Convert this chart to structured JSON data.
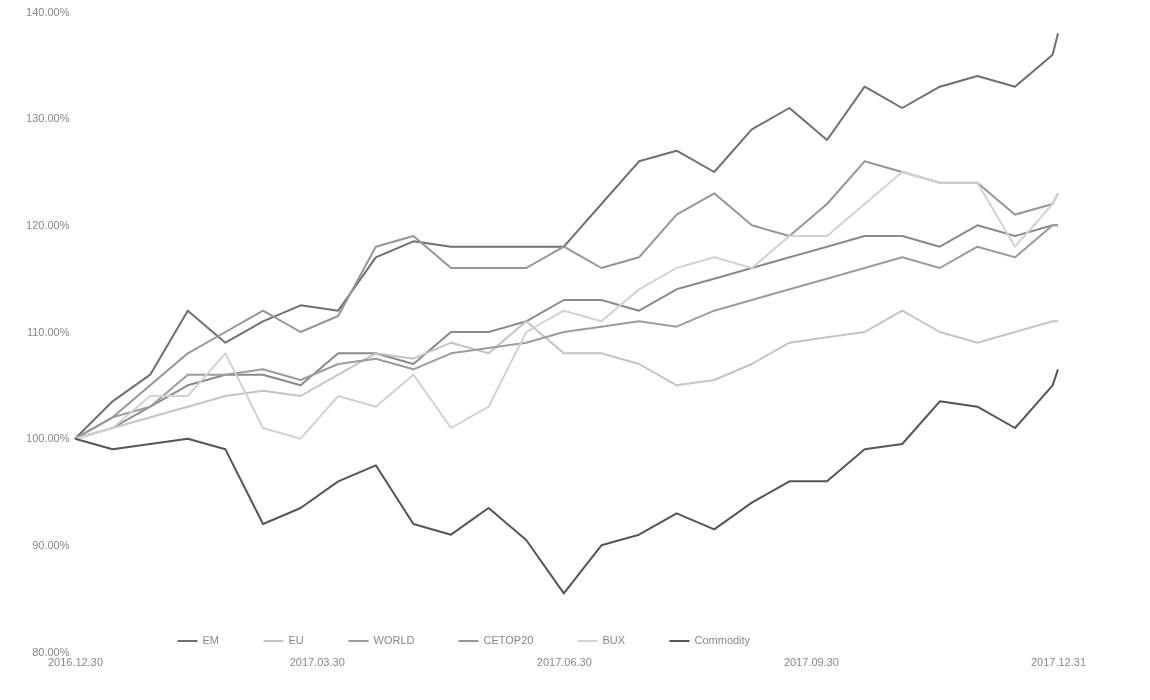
{
  "chart_data": {
    "type": "line",
    "x": [
      "2016-12-30",
      "2017-01-13",
      "2017-01-27",
      "2017-02-10",
      "2017-02-24",
      "2017-03-10",
      "2017-03-24",
      "2017-04-07",
      "2017-04-21",
      "2017-05-05",
      "2017-05-19",
      "2017-06-02",
      "2017-06-16",
      "2017-06-30",
      "2017-07-14",
      "2017-07-28",
      "2017-08-11",
      "2017-08-25",
      "2017-09-08",
      "2017-09-22",
      "2017-10-06",
      "2017-10-20",
      "2017-11-03",
      "2017-11-17",
      "2017-12-01",
      "2017-12-15",
      "2017-12-29",
      "2017-12-31"
    ],
    "series": [
      {
        "color": "#8a8a8a",
        "values": [
          100,
          101,
          103,
          105,
          106,
          106,
          105,
          108,
          108,
          107,
          110,
          110,
          111,
          113,
          113,
          112,
          114,
          115,
          116,
          117,
          118,
          119,
          119,
          118,
          120,
          119,
          120,
          120
        ]
      },
      {
        "name": "EM",
        "color": "#707070",
        "values": [
          100,
          103.5,
          106,
          112,
          109,
          111,
          112.5,
          112,
          117,
          118.5,
          118,
          118,
          118,
          118,
          122,
          126,
          127,
          125,
          129,
          131,
          128,
          133,
          131,
          133,
          134,
          133,
          136,
          138
        ]
      },
      {
        "name": "EU",
        "color": "#c4c4c4",
        "values": [
          100,
          101,
          102,
          103,
          104,
          104.5,
          104,
          106,
          108,
          107.5,
          109,
          108,
          111,
          108,
          108,
          107,
          105,
          105.5,
          107,
          109,
          109.5,
          110,
          112,
          110,
          109,
          110,
          111,
          111
        ]
      },
      {
        "name": "WORLD",
        "color": "#9c9c9c",
        "values": [
          100,
          102,
          103,
          106,
          106,
          106.5,
          105.5,
          107,
          107.5,
          106.5,
          108,
          108.5,
          109,
          110,
          110.5,
          111,
          110.5,
          112,
          113,
          114,
          115,
          116,
          117,
          116,
          118,
          117,
          120,
          120
        ]
      },
      {
        "name": "CETOP20",
        "color": "#969696",
        "values": [
          100,
          102,
          105,
          108,
          110,
          112,
          110,
          111.5,
          118,
          119,
          116,
          116,
          116,
          118,
          116,
          117,
          121,
          123,
          120,
          119,
          122,
          126,
          125,
          124,
          124,
          121,
          122,
          123
        ]
      },
      {
        "name": "BUX",
        "color": "#d2d2d2",
        "values": [
          100,
          101,
          104,
          104,
          108,
          101,
          100,
          104,
          103,
          106,
          101,
          103,
          110,
          112,
          111,
          114,
          116,
          117,
          116,
          119,
          119,
          122,
          125,
          124,
          124,
          118,
          122,
          123
        ]
      },
      {
        "name": "Commodity",
        "color": "#555555",
        "values": [
          100,
          99,
          99.5,
          100,
          99,
          92,
          93.5,
          96,
          97.5,
          92,
          91,
          93.5,
          90.5,
          85.5,
          90,
          91,
          93,
          91.5,
          94,
          96,
          96,
          99,
          99.5,
          103.5,
          103,
          101,
          105,
          106.5
        ]
      }
    ],
    "xlim": [
      "2016-12-30",
      "2017-12-31"
    ],
    "xticks": [
      {
        "value": "2016-12-30",
        "label": "2016.12.30"
      },
      {
        "value": "2017-03-30",
        "label": "2017.03.30"
      },
      {
        "value": "2017-06-30",
        "label": "2017.06.30"
      },
      {
        "value": "2017-09-30",
        "label": "2017.09.30"
      },
      {
        "value": "2017-12-31",
        "label": "2017.12.31"
      }
    ],
    "ylim": [
      80,
      140
    ],
    "yticks": [
      {
        "value": 80,
        "label": "80.00%"
      },
      {
        "value": 90,
        "label": "90.00%"
      },
      {
        "value": 100,
        "label": "100.00%"
      },
      {
        "value": 110,
        "label": "110.00%"
      },
      {
        "value": 120,
        "label": "120.00%"
      },
      {
        "value": 130,
        "label": "130.00%"
      },
      {
        "value": 140,
        "label": "140.00%"
      }
    ],
    "legend": "bottom",
    "grid": false
  }
}
